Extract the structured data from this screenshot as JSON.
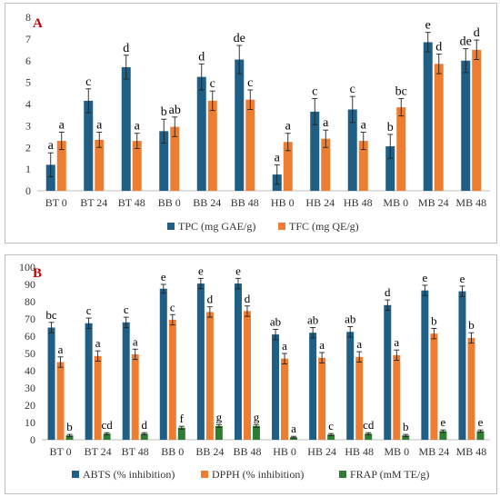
{
  "chart_data": [
    {
      "type": "bar",
      "panel_label": "A",
      "categories": [
        "BT 0",
        "BT 24",
        "BT 48",
        "BB 0",
        "BB 24",
        "BB 48",
        "HB 0",
        "HB 24",
        "HB 48",
        "MB 0",
        "MB 24",
        "MB 48"
      ],
      "ylim": [
        0,
        8
      ],
      "yticks": [
        "0",
        "1",
        "2",
        "3",
        "4",
        "5",
        "6",
        "7",
        "8"
      ],
      "grid": false,
      "legend_position": "bottom",
      "series": [
        {
          "name": "TPC (mg GAE/g)",
          "color": "#1f5e85",
          "values": [
            1.2,
            4.15,
            5.7,
            2.75,
            5.25,
            6.05,
            0.75,
            3.65,
            3.75,
            2.05,
            6.85,
            6.0
          ],
          "errors": [
            0.55,
            0.55,
            0.55,
            0.55,
            0.6,
            0.65,
            0.45,
            0.6,
            0.6,
            0.55,
            0.45,
            0.55
          ],
          "labels": [
            "a",
            "c",
            "d",
            "b",
            "d",
            "de",
            "a",
            "c",
            "c",
            "b",
            "e",
            "de"
          ]
        },
        {
          "name": "TFC (mg QE/g)",
          "color": "#ed7d31",
          "values": [
            2.3,
            2.35,
            2.3,
            2.95,
            4.15,
            4.2,
            2.25,
            2.4,
            2.3,
            3.85,
            5.85,
            6.5
          ],
          "errors": [
            0.4,
            0.35,
            0.35,
            0.45,
            0.45,
            0.45,
            0.4,
            0.4,
            0.4,
            0.4,
            0.45,
            0.45
          ],
          "labels": [
            "a",
            "a",
            "a",
            "ab",
            "c",
            "c",
            "a",
            "a",
            "a",
            "bc",
            "d",
            "d"
          ]
        }
      ]
    },
    {
      "type": "bar",
      "panel_label": "B",
      "categories": [
        "BT 0",
        "BT 24",
        "BT 48",
        "BB 0",
        "BB 24",
        "BB 48",
        "HB 0",
        "HB 24",
        "HB 48",
        "MB 0",
        "MB 24",
        "MB 48"
      ],
      "ylim": [
        0,
        100
      ],
      "yticks": [
        "0",
        "10",
        "20",
        "30",
        "40",
        "50",
        "60",
        "70",
        "80",
        "90",
        "100"
      ],
      "grid": false,
      "legend_position": "bottom",
      "series": [
        {
          "name": "ABTS (% inhibition)",
          "color": "#1f5e85",
          "values": [
            65,
            67.5,
            68,
            87.5,
            90.5,
            90.5,
            61,
            62,
            62.5,
            78,
            86.5,
            86
          ],
          "errors": [
            3,
            3,
            3,
            2.5,
            3,
            3,
            3,
            3,
            3,
            3,
            3,
            3
          ],
          "labels": [
            "bc",
            "c",
            "c",
            "e",
            "e",
            "e",
            "ab",
            "ab",
            "ab",
            "d",
            "e",
            "e"
          ]
        },
        {
          "name": "DPPH (% inhibition)",
          "color": "#ed7d31",
          "values": [
            45,
            48.5,
            49.5,
            69.5,
            74,
            74.5,
            47,
            47.5,
            48,
            49,
            61.5,
            59
          ],
          "errors": [
            3,
            3,
            3,
            3,
            3,
            3,
            3,
            3,
            3,
            3,
            3,
            3
          ],
          "labels": [
            "a",
            "a",
            "a",
            "c",
            "d",
            "d",
            "a",
            "a",
            "a",
            "a",
            "b",
            "b"
          ]
        },
        {
          "name": "FRAP (mM TE/g)",
          "color": "#2e7d32",
          "values": [
            2.5,
            3.5,
            3.5,
            7,
            8,
            8,
            1.5,
            3,
            3.5,
            2.5,
            5,
            5
          ],
          "errors": [
            0.6,
            0.6,
            0.6,
            0.8,
            0.8,
            0.8,
            0.5,
            0.6,
            0.6,
            0.6,
            0.7,
            0.7
          ],
          "labels": [
            "b",
            "cd",
            "d",
            "f",
            "g",
            "g",
            "a",
            "c",
            "cd",
            "b",
            "e",
            "e"
          ]
        }
      ]
    }
  ]
}
